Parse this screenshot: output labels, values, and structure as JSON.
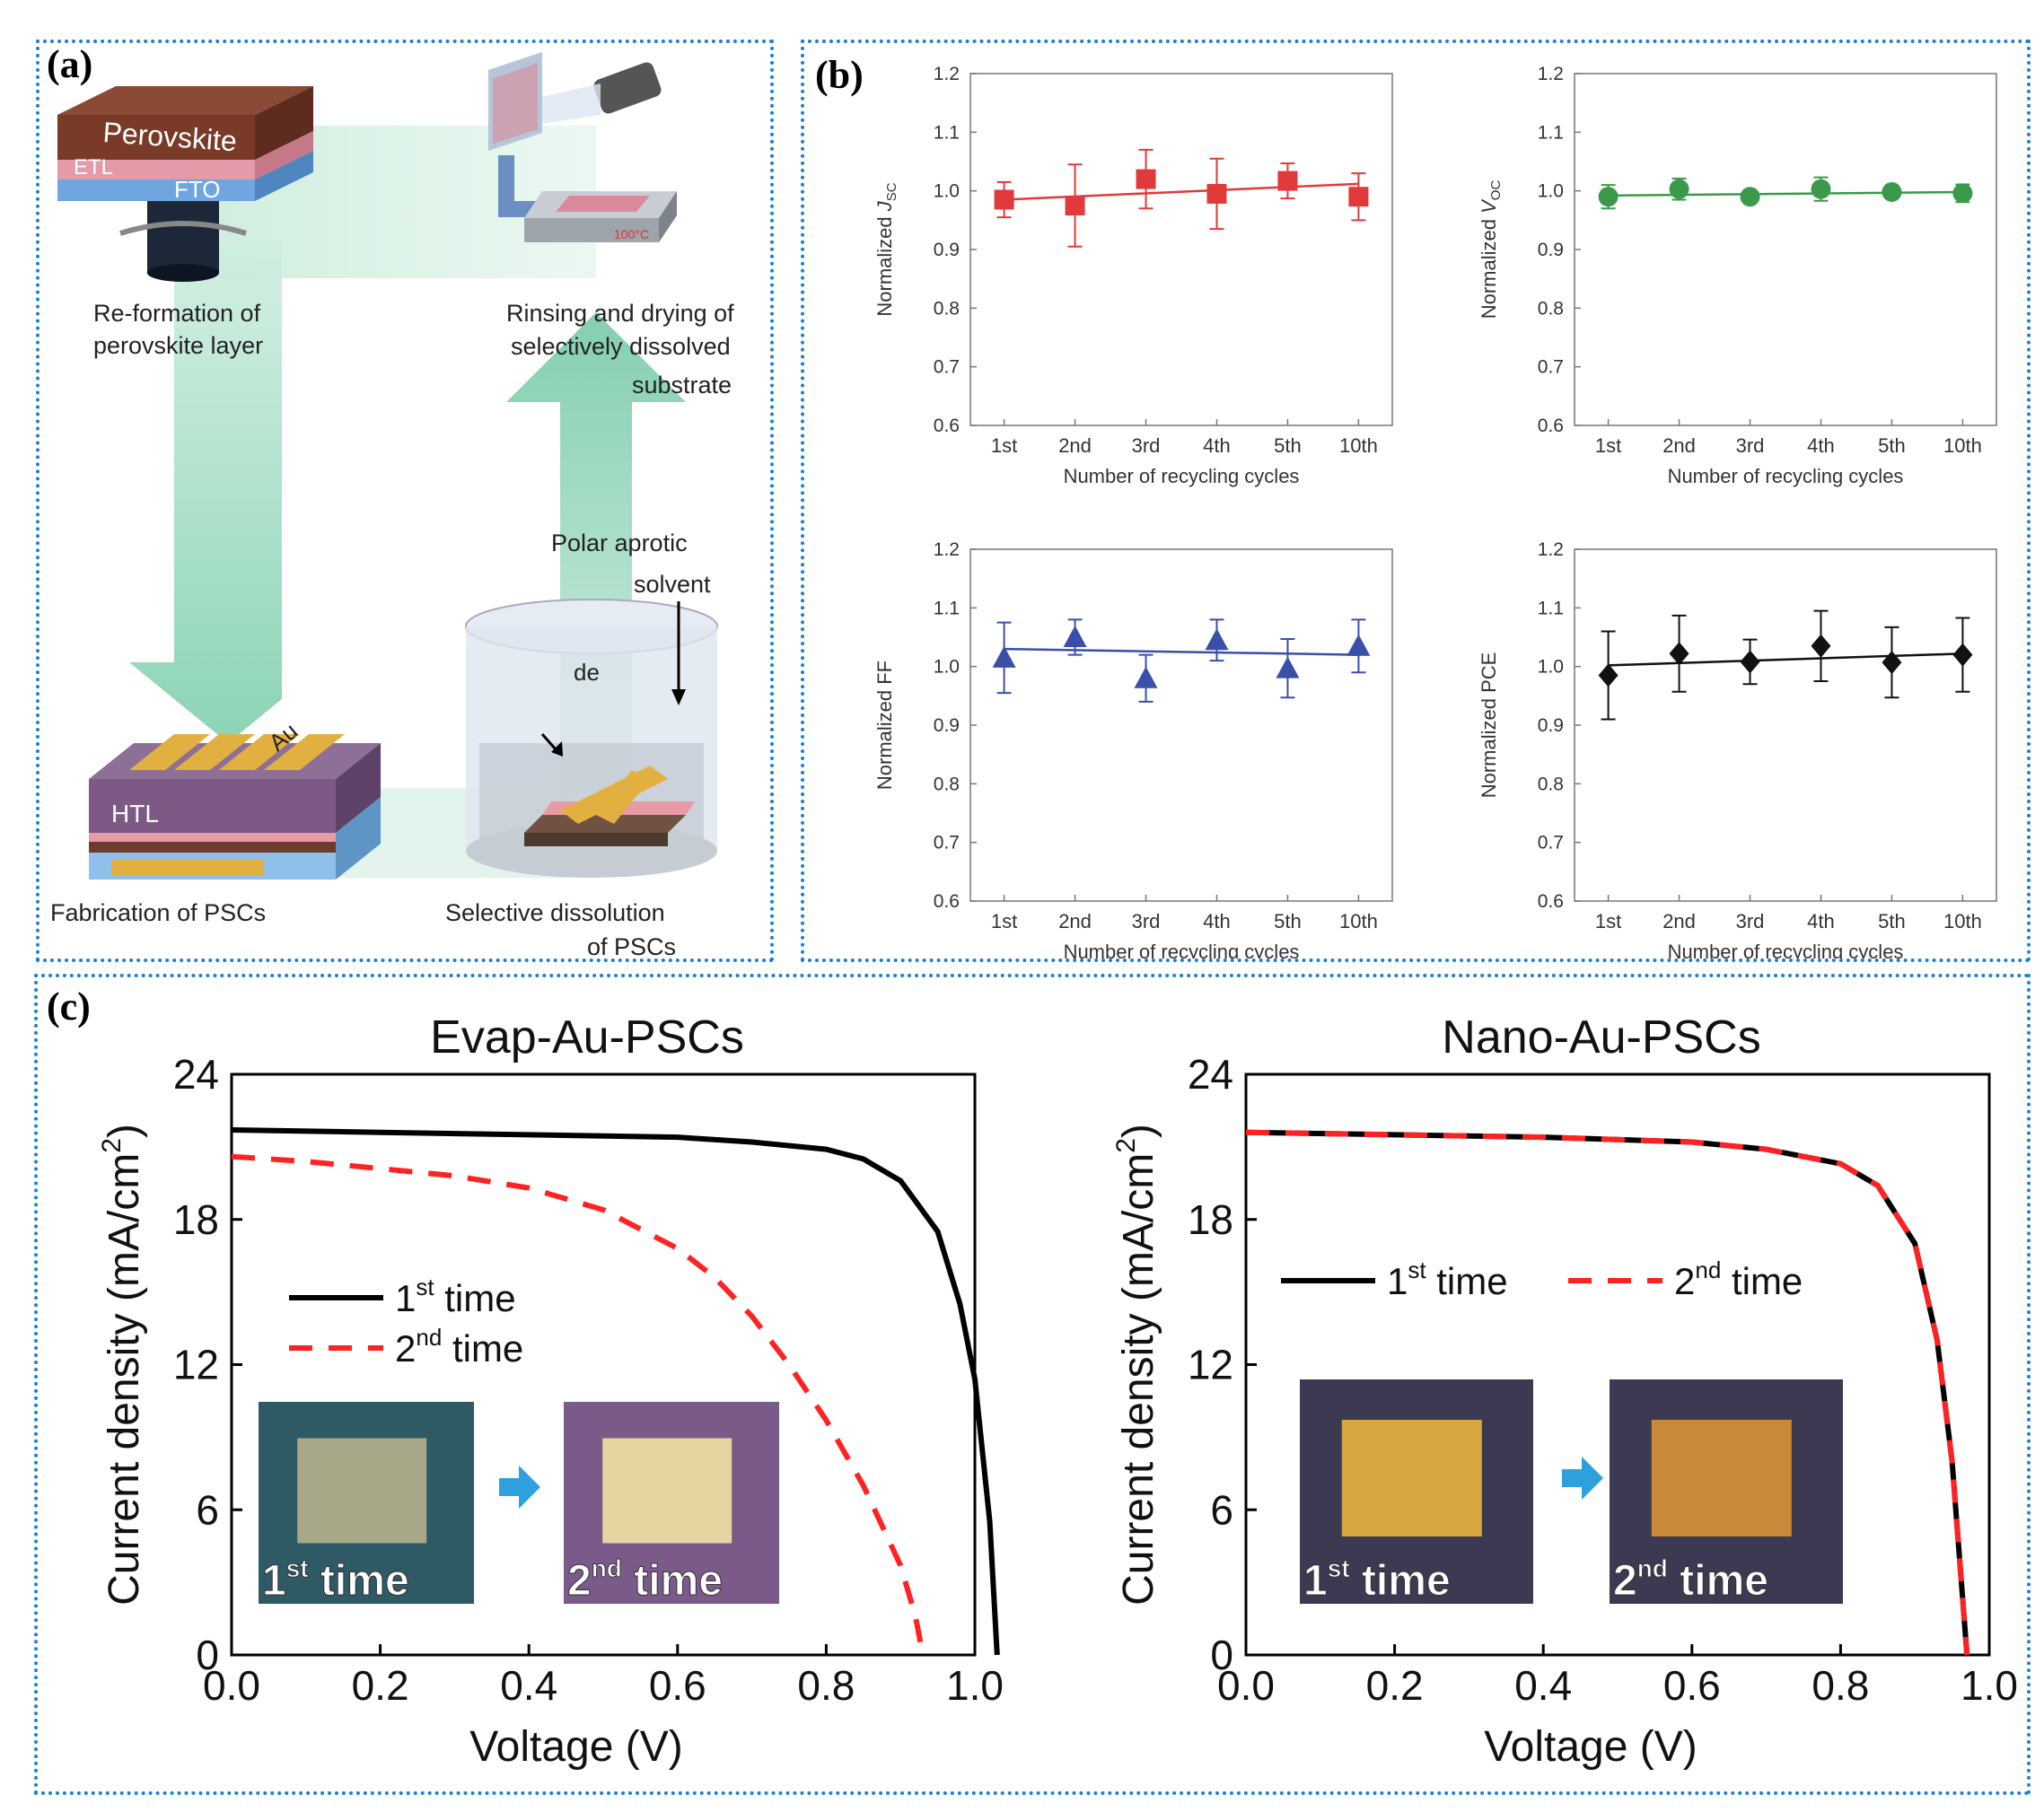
{
  "panels": {
    "a": "(a)",
    "b": "(b)",
    "c": "(c)"
  },
  "diagram": {
    "layers": {
      "perovskite": "Perovskite",
      "etl": "ETL",
      "fto": "FTO",
      "htl": "HTL",
      "au": "Au",
      "temp": "100°C"
    },
    "steps": {
      "reform": [
        "Re-formation of",
        "perovskite layer"
      ],
      "rinse": [
        "Rinsing and drying of",
        "selectively dissolved",
        "substrate"
      ],
      "solvent": [
        "Polar aprotic",
        "solvent"
      ],
      "partial": "de",
      "fabrication": "Fabrication of PSCs",
      "dissolution": [
        "Selective dissolution",
        "of PSCs"
      ]
    }
  },
  "colors": {
    "jsc": "#e03a3a",
    "voc": "#3a9a4a",
    "ff": "#3a4fa8",
    "pce": "#111111",
    "first": "#000000",
    "second": "#ff2222",
    "border": "#1e7fd0"
  },
  "chart_data": [
    {
      "type": "scatter",
      "id": "jsc",
      "marker": "square",
      "title": "",
      "xlabel": "Number of recycling cycles",
      "ylabel": {
        "prefix": "Normalized ",
        "main": "J",
        "sub": "SC"
      },
      "categories": [
        "1st",
        "2nd",
        "3rd",
        "4th",
        "5th",
        "10th"
      ],
      "values": [
        0.985,
        0.975,
        1.02,
        0.995,
        1.017,
        0.99
      ],
      "errors": [
        0.03,
        0.07,
        0.05,
        0.06,
        0.03,
        0.04
      ],
      "fit": [
        0.985,
        1.012
      ],
      "ylim": [
        0.6,
        1.2
      ],
      "yticks": [
        "0.6",
        "0.7",
        "0.8",
        "0.9",
        "1.0",
        "1.1",
        "1.2"
      ]
    },
    {
      "type": "scatter",
      "id": "voc",
      "marker": "circle",
      "title": "",
      "xlabel": "Number of recycling cycles",
      "ylabel": {
        "prefix": "Normalized ",
        "main": "V",
        "sub": "OC"
      },
      "categories": [
        "1st",
        "2nd",
        "3rd",
        "4th",
        "5th",
        "10th"
      ],
      "values": [
        0.99,
        1.003,
        0.99,
        1.003,
        0.998,
        0.996
      ],
      "errors": [
        0.02,
        0.018,
        0.008,
        0.02,
        0.008,
        0.015
      ],
      "fit": [
        0.992,
        0.998
      ],
      "ylim": [
        0.6,
        1.2
      ],
      "yticks": [
        "0.6",
        "0.7",
        "0.8",
        "0.9",
        "1.0",
        "1.1",
        "1.2"
      ]
    },
    {
      "type": "scatter",
      "id": "ff",
      "marker": "triangle",
      "title": "",
      "xlabel": "Number of recycling cycles",
      "ylabel": {
        "prefix": "Normalized FF",
        "main": "",
        "sub": ""
      },
      "categories": [
        "1st",
        "2nd",
        "3rd",
        "4th",
        "5th",
        "10th"
      ],
      "values": [
        1.015,
        1.05,
        0.98,
        1.045,
        0.997,
        1.035
      ],
      "errors": [
        0.06,
        0.03,
        0.04,
        0.035,
        0.05,
        0.045
      ],
      "fit": [
        1.03,
        1.02
      ],
      "ylim": [
        0.6,
        1.2
      ],
      "yticks": [
        "0.6",
        "0.7",
        "0.8",
        "0.9",
        "1.0",
        "1.1",
        "1.2"
      ]
    },
    {
      "type": "scatter",
      "id": "pce",
      "marker": "diamond",
      "title": "",
      "xlabel": "Number of recycling cycles",
      "ylabel": {
        "prefix": "Normalized PCE",
        "main": "",
        "sub": ""
      },
      "categories": [
        "1st",
        "2nd",
        "3rd",
        "4th",
        "5th",
        "10th"
      ],
      "values": [
        0.985,
        1.022,
        1.008,
        1.035,
        1.007,
        1.02
      ],
      "errors": [
        0.075,
        0.065,
        0.038,
        0.06,
        0.06,
        0.063
      ],
      "fit": [
        1.002,
        1.022
      ],
      "ylim": [
        0.6,
        1.2
      ],
      "yticks": [
        "0.6",
        "0.7",
        "0.8",
        "0.9",
        "1.0",
        "1.1",
        "1.2"
      ]
    },
    {
      "type": "line",
      "id": "evap",
      "title": "Evap-Au-PSCs",
      "xlabel": "Voltage (V)",
      "ylabel": "Current density (mA/cm",
      "xlim": [
        0,
        1.0
      ],
      "ylim": [
        0,
        24
      ],
      "xticks": [
        "0.0",
        "0.2",
        "0.4",
        "0.6",
        "0.8",
        "1.0"
      ],
      "yticks": [
        "0",
        "6",
        "12",
        "18",
        "24"
      ],
      "legend": [
        {
          "sup": "st",
          "label": "1",
          "tail": " time"
        },
        {
          "sup": "nd",
          "label": "2",
          "tail": " time"
        }
      ],
      "photos": [
        {
          "num": "1",
          "sup": "st",
          "tail": " time"
        },
        {
          "num": "2",
          "sup": "nd",
          "tail": " time"
        }
      ],
      "series": [
        {
          "name": "1st time",
          "x": [
            0,
            0.2,
            0.4,
            0.6,
            0.7,
            0.8,
            0.85,
            0.9,
            0.95,
            0.98,
            1.0,
            1.02,
            1.03
          ],
          "y": [
            21.7,
            21.6,
            21.5,
            21.4,
            21.2,
            20.9,
            20.5,
            19.6,
            17.5,
            14.5,
            11.4,
            5.5,
            0
          ]
        },
        {
          "name": "2nd time",
          "x": [
            0,
            0.1,
            0.2,
            0.3,
            0.4,
            0.5,
            0.6,
            0.65,
            0.7,
            0.75,
            0.8,
            0.85,
            0.9,
            0.92,
            0.93
          ],
          "y": [
            20.6,
            20.4,
            20.1,
            19.8,
            19.3,
            18.4,
            16.8,
            15.6,
            14.0,
            12.0,
            9.7,
            7.0,
            3.7,
            1.6,
            0
          ]
        }
      ]
    },
    {
      "type": "line",
      "id": "nano",
      "title": "Nano-Au-PSCs",
      "xlabel": "Voltage (V)",
      "ylabel": "Current density (mA/cm",
      "xlim": [
        0,
        1.0
      ],
      "ylim": [
        0,
        24
      ],
      "xticks": [
        "0.0",
        "0.2",
        "0.4",
        "0.6",
        "0.8",
        "1.0"
      ],
      "yticks": [
        "0",
        "6",
        "12",
        "18",
        "24"
      ],
      "legend": [
        {
          "sup": "st",
          "label": "1",
          "tail": " time"
        },
        {
          "sup": "nd",
          "label": "2",
          "tail": " time"
        }
      ],
      "photos": [
        {
          "num": "1",
          "sup": "st",
          "tail": " time"
        },
        {
          "num": "2",
          "sup": "nd",
          "tail": " time"
        }
      ],
      "series": [
        {
          "name": "1st time",
          "x": [
            0,
            0.2,
            0.4,
            0.6,
            0.7,
            0.8,
            0.85,
            0.9,
            0.93,
            0.95,
            0.96,
            0.97
          ],
          "y": [
            21.6,
            21.5,
            21.4,
            21.2,
            20.9,
            20.3,
            19.4,
            17.0,
            13.0,
            8.0,
            4.0,
            0
          ]
        },
        {
          "name": "2nd time",
          "x": [
            0,
            0.2,
            0.4,
            0.6,
            0.7,
            0.8,
            0.85,
            0.9,
            0.93,
            0.95,
            0.96,
            0.97
          ],
          "y": [
            21.6,
            21.5,
            21.4,
            21.2,
            20.9,
            20.3,
            19.4,
            17.0,
            13.0,
            8.0,
            4.0,
            0
          ]
        }
      ]
    }
  ]
}
